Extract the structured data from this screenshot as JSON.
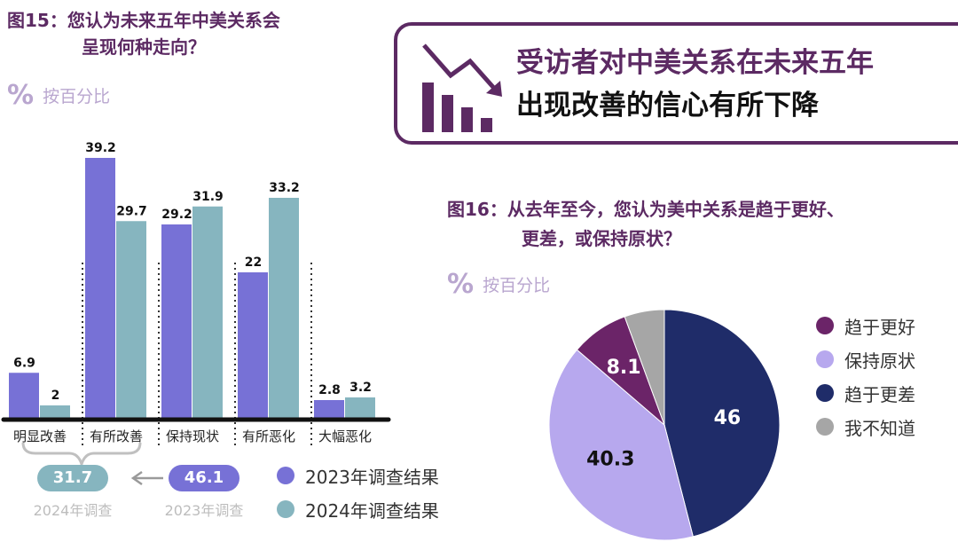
{
  "fig15": {
    "title_line1": "图15：您认为未来五年中美关系会",
    "title_line2": "呈现何种走向？",
    "unit_icon": "%",
    "unit_label": "按百分比"
  },
  "headline": {
    "line1": "受访者对中美关系在未来五年",
    "line2": "出现改善的信心有所下降"
  },
  "fig16": {
    "title_line1": "图16：从去年至今，您认为美中关系是趋于更好、",
    "title_line2": "更差，或保持原状？",
    "unit_icon": "%",
    "unit_label": "按百分比"
  },
  "summary": {
    "val_2024": "31.7",
    "cap_2024": "2024年调查",
    "val_2023": "46.1",
    "cap_2023": "2023年调查"
  },
  "bar_legend": [
    {
      "label": "2023年调查结果",
      "color": "#7771d6"
    },
    {
      "label": "2024年调查结果",
      "color": "#86b5bf"
    }
  ],
  "pie_legend": [
    {
      "label": "趋于更好",
      "color": "#6b2468"
    },
    {
      "label": "保持原状",
      "color": "#b7a8ee"
    },
    {
      "label": "趋于更差",
      "color": "#1f2c69"
    },
    {
      "label": "我不知道",
      "color": "#a6a6a6"
    }
  ],
  "chart_data": [
    {
      "type": "bar",
      "title": "图15：您认为未来五年中美关系会呈现何种走向？",
      "ylabel": "按百分比",
      "categories": [
        "明显改善",
        "有所改善",
        "保持现状",
        "有所恶化",
        "大幅恶化"
      ],
      "series": [
        {
          "name": "2023年调查结果",
          "values": [
            6.9,
            39.2,
            29.2,
            22,
            2.8
          ],
          "labels": [
            "6.9",
            "39.2",
            "29.2",
            "22",
            "2.8"
          ],
          "color": "#7771d6"
        },
        {
          "name": "2024年调查结果",
          "values": [
            2,
            29.7,
            31.9,
            33.2,
            3.2
          ],
          "labels": [
            "2",
            "29.7",
            "31.9",
            "33.2",
            "3.2"
          ],
          "color": "#86b5bf"
        }
      ],
      "ylim": [
        0,
        40
      ],
      "grid": false,
      "legend": "bottom-right"
    },
    {
      "type": "pie",
      "title": "图16：从去年至今，您认为美中关系是趋于更好、更差，或保持原状？",
      "labels": [
        "趋于更差",
        "保持原状",
        "趋于更好",
        "我不知道"
      ],
      "values": [
        46,
        40.3,
        8.1,
        5.6
      ],
      "value_labels": [
        "46",
        "40.3",
        "8.1",
        ""
      ],
      "colors": [
        "#1f2c69",
        "#b7a8ee",
        "#6b2468",
        "#a6a6a6"
      ],
      "label_colors": [
        "#ffffff",
        "#111111",
        "#ffffff",
        ""
      ],
      "legend": "right"
    }
  ]
}
